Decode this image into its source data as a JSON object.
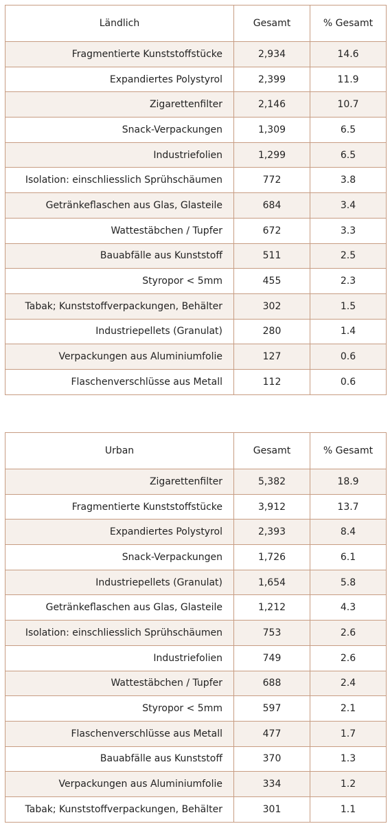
{
  "tables": [
    {
      "headers": [
        "Ländlich",
        "Gesamt",
        "% Gesamt"
      ],
      "rows": [
        [
          "Fragmentierte Kunststoffstücke",
          "2,934",
          "14.6"
        ],
        [
          "Expandiertes Polystyrol",
          "2,399",
          "11.9"
        ],
        [
          "Zigarettenfilter",
          "2,146",
          "10.7"
        ],
        [
          "Snack-Verpackungen",
          "1,309",
          "6.5"
        ],
        [
          "Industriefolien",
          "1,299",
          "6.5"
        ],
        [
          "Isolation: einschliesslich Sprühschäumen",
          "772",
          "3.8"
        ],
        [
          "Getränkeflaschen aus Glas, Glasteile",
          "684",
          "3.4"
        ],
        [
          "Wattestäbchen / Tupfer",
          "672",
          "3.3"
        ],
        [
          "Bauabfälle aus Kunststoff",
          "511",
          "2.5"
        ],
        [
          "Styropor < 5mm",
          "455",
          "2.3"
        ],
        [
          "Tabak; Kunststoffverpackungen, Behälter",
          "302",
          "1.5"
        ],
        [
          "Industriepellets (Granulat)",
          "280",
          "1.4"
        ],
        [
          "Verpackungen aus Aluminiumfolie",
          "127",
          "0.6"
        ],
        [
          "Flaschenverschlüsse aus Metall",
          "112",
          "0.6"
        ]
      ]
    },
    {
      "headers": [
        "Urban",
        "Gesamt",
        "% Gesamt"
      ],
      "rows": [
        [
          "Zigarettenfilter",
          "5,382",
          "18.9"
        ],
        [
          "Fragmentierte Kunststoffstücke",
          "3,912",
          "13.7"
        ],
        [
          "Expandiertes Polystyrol",
          "2,393",
          "8.4"
        ],
        [
          "Snack-Verpackungen",
          "1,726",
          "6.1"
        ],
        [
          "Industriepellets (Granulat)",
          "1,654",
          "5.8"
        ],
        [
          "Getränkeflaschen aus Glas, Glasteile",
          "1,212",
          "4.3"
        ],
        [
          "Isolation: einschliesslich Sprühschäumen",
          "753",
          "2.6"
        ],
        [
          "Industriefolien",
          "749",
          "2.6"
        ],
        [
          "Wattestäbchen / Tupfer",
          "688",
          "2.4"
        ],
        [
          "Styropor < 5mm",
          "597",
          "2.1"
        ],
        [
          "Flaschenverschlüsse aus Metall",
          "477",
          "1.7"
        ],
        [
          "Bauabfälle aus Kunststoff",
          "370",
          "1.3"
        ],
        [
          "Verpackungen aus Aluminiumfolie",
          "334",
          "1.2"
        ],
        [
          "Tabak; Kunststoffverpackungen, Behälter",
          "301",
          "1.1"
        ]
      ]
    }
  ],
  "colors": {
    "border": "#c79c82",
    "row_shade": "#f6f0eb",
    "text": "#222222"
  }
}
